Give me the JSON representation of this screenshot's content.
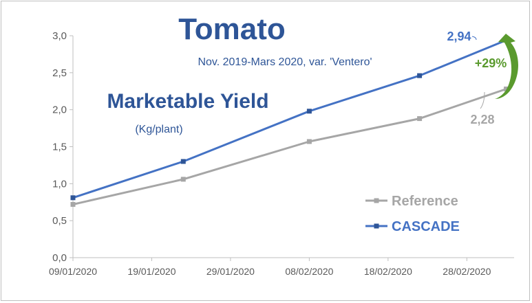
{
  "chart_data": {
    "type": "line",
    "title": "Tomato",
    "subtitle": "Nov. 2019-Mars 2020,  var. 'Ventero'",
    "inner_title": "Marketable Yield",
    "unit_label": "(Kg/plant)",
    "xlabel": "",
    "ylabel": "",
    "x_tick_labels": [
      "09/01/2020",
      "19/01/2020",
      "29/01/2020",
      "08/02/2020",
      "18/02/2020",
      "28/02/2020"
    ],
    "x_tick_dates": [
      "2020-01-09",
      "2020-01-19",
      "2020-01-29",
      "2020-02-08",
      "2020-02-18",
      "2020-02-28"
    ],
    "xlim": [
      "2020-01-09",
      "2020-03-05"
    ],
    "ylim": [
      0,
      3.0
    ],
    "y_tick_labels": [
      "0,0",
      "0,5",
      "1,0",
      "1,5",
      "2,0",
      "2,5",
      "3,0"
    ],
    "y_tick_values": [
      0,
      0.5,
      1.0,
      1.5,
      2.0,
      2.5,
      3.0
    ],
    "grid": false,
    "legend_position": "bottom-right",
    "series": [
      {
        "name": "Reference",
        "color": "#a6a6a6",
        "x": [
          "2020-01-09",
          "2020-01-23",
          "2020-02-08",
          "2020-02-22",
          "2020-03-04"
        ],
        "values": [
          0.72,
          1.06,
          1.57,
          1.88,
          2.28
        ]
      },
      {
        "name": "CASCADE",
        "color": "#4472c4",
        "x": [
          "2020-01-09",
          "2020-01-23",
          "2020-02-08",
          "2020-02-22",
          "2020-03-04"
        ],
        "values": [
          0.81,
          1.3,
          1.98,
          2.46,
          2.94
        ]
      }
    ],
    "annotations": {
      "cascade_last": "2,94",
      "reference_last": "2,28",
      "increase": "+29%",
      "increase_color": "#5a9a2e"
    },
    "colors": {
      "title": "#2e5597",
      "axis_text": "#595959",
      "axis_line": "#bfbfbf"
    }
  }
}
